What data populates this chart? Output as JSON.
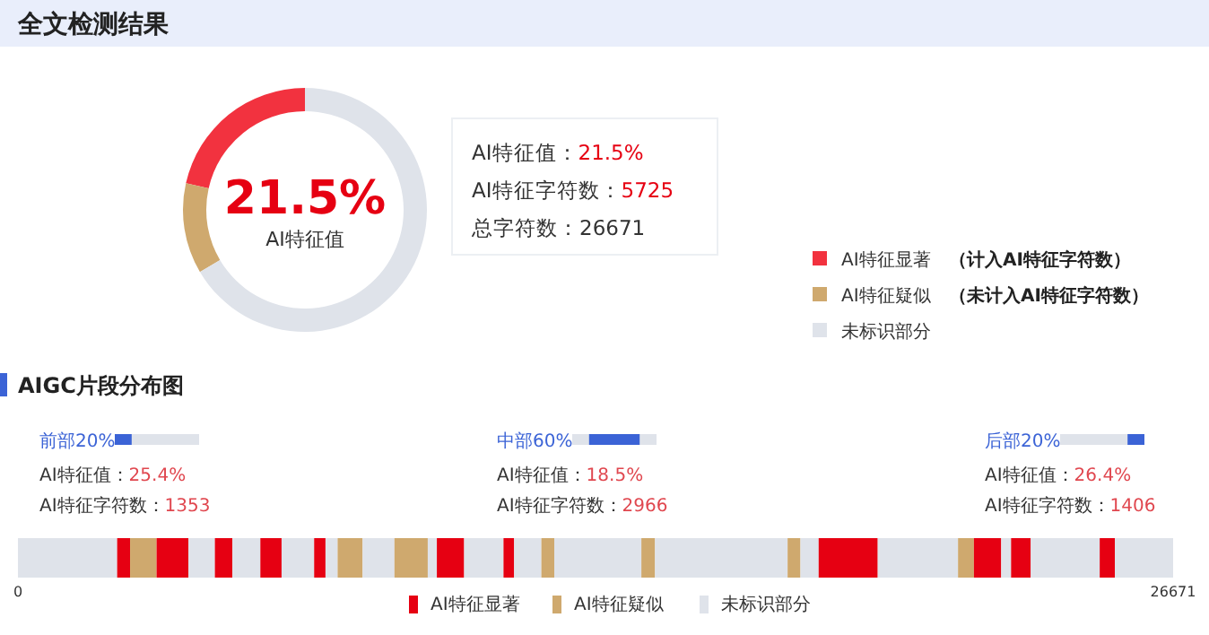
{
  "chart_data": [
    {
      "type": "donut",
      "title": "全文检测结果",
      "categories": [
        "AI特征显著",
        "AI特征疑似",
        "未标识部分"
      ],
      "values": [
        21.5,
        12,
        66.5
      ],
      "colors": [
        "#f2323f",
        "#cfa96e",
        "#dfe3ea"
      ],
      "legend": "right",
      "annotations": [
        "21.5%",
        "AI特征值",
        "AI特征值：",
        "21.5%",
        "AI特征字符数：",
        "5725",
        "总字符数：",
        "26671",
        "（计入AI特征字符数）",
        "（未计入AI特征字符数）"
      ]
    },
    {
      "type": "bar",
      "title": "AIGC片段分布图",
      "orientation": "horizontal",
      "stacked": true,
      "categories": [
        null
      ],
      "xlim": [
        0,
        26671
      ],
      "xticks": [
        0,
        26671
      ],
      "legend": "bottom",
      "annotations": [
        "前部20%",
        "AI特征值：",
        "25.4%",
        "AI特征字符数：",
        "1353",
        "中部60%",
        "AI特征值：",
        "18.5%",
        "AI特征字符数：",
        "2966",
        "后部20%",
        "AI特征值：",
        "26.4%",
        "AI特征字符数：",
        "1406"
      ],
      "series": [
        {
          "color": "#dfe3ea",
          "values": [
            2291
          ]
        },
        {
          "name": "AI特征显著",
          "color": "#e60012",
          "values": [
            298
          ]
        },
        {
          "name": "AI特征疑似",
          "color": "#cfa96e",
          "values": [
            612
          ]
        },
        {
          "color": "#e60012",
          "values": [
            734
          ]
        },
        {
          "name": "未标识部分",
          "color": "#dfe3ea",
          "values": [
            612
          ]
        },
        {
          "color": "#e60012",
          "values": [
            403
          ]
        },
        {
          "color": "#dfe3ea",
          "values": [
            647
          ]
        },
        {
          "color": "#e60012",
          "values": [
            490
          ]
        },
        {
          "color": "#dfe3ea",
          "values": [
            752
          ]
        },
        {
          "color": "#e60012",
          "values": [
            262
          ]
        },
        {
          "color": "#dfe3ea",
          "values": [
            280
          ]
        },
        {
          "color": "#cfa96e",
          "values": [
            577
          ]
        },
        {
          "color": "#dfe3ea",
          "values": [
            735
          ]
        },
        {
          "color": "#cfa96e",
          "values": [
            769
          ]
        },
        {
          "color": "#dfe3ea",
          "values": [
            210
          ]
        },
        {
          "color": "#e60012",
          "values": [
            630
          ]
        },
        {
          "color": "#dfe3ea",
          "values": [
            909
          ]
        },
        {
          "color": "#e60012",
          "values": [
            245
          ]
        },
        {
          "color": "#dfe3ea",
          "values": [
            629
          ]
        },
        {
          "color": "#cfa96e",
          "values": [
            298
          ]
        },
        {
          "color": "#dfe3ea",
          "values": [
            2011
          ]
        },
        {
          "color": "#cfa96e",
          "values": [
            315
          ]
        },
        {
          "color": "#dfe3ea",
          "values": [
            3061
          ]
        },
        {
          "color": "#cfa96e",
          "values": [
            297
          ]
        },
        {
          "color": "#dfe3ea",
          "values": [
            420
          ]
        },
        {
          "color": "#e60012",
          "values": [
            1364
          ]
        },
        {
          "color": "#dfe3ea",
          "values": [
            1854
          ]
        },
        {
          "color": "#cfa96e",
          "values": [
            367
          ]
        },
        {
          "color": "#e60012",
          "values": [
            630
          ]
        },
        {
          "color": "#dfe3ea",
          "values": [
            228
          ]
        },
        {
          "color": "#e60012",
          "values": [
            454
          ]
        },
        {
          "color": "#dfe3ea",
          "values": [
            1592
          ]
        },
        {
          "color": "#e60012",
          "values": [
            350
          ]
        },
        {
          "color": "#dfe3ea",
          "values": [
            1345
          ]
        }
      ]
    }
  ]
}
